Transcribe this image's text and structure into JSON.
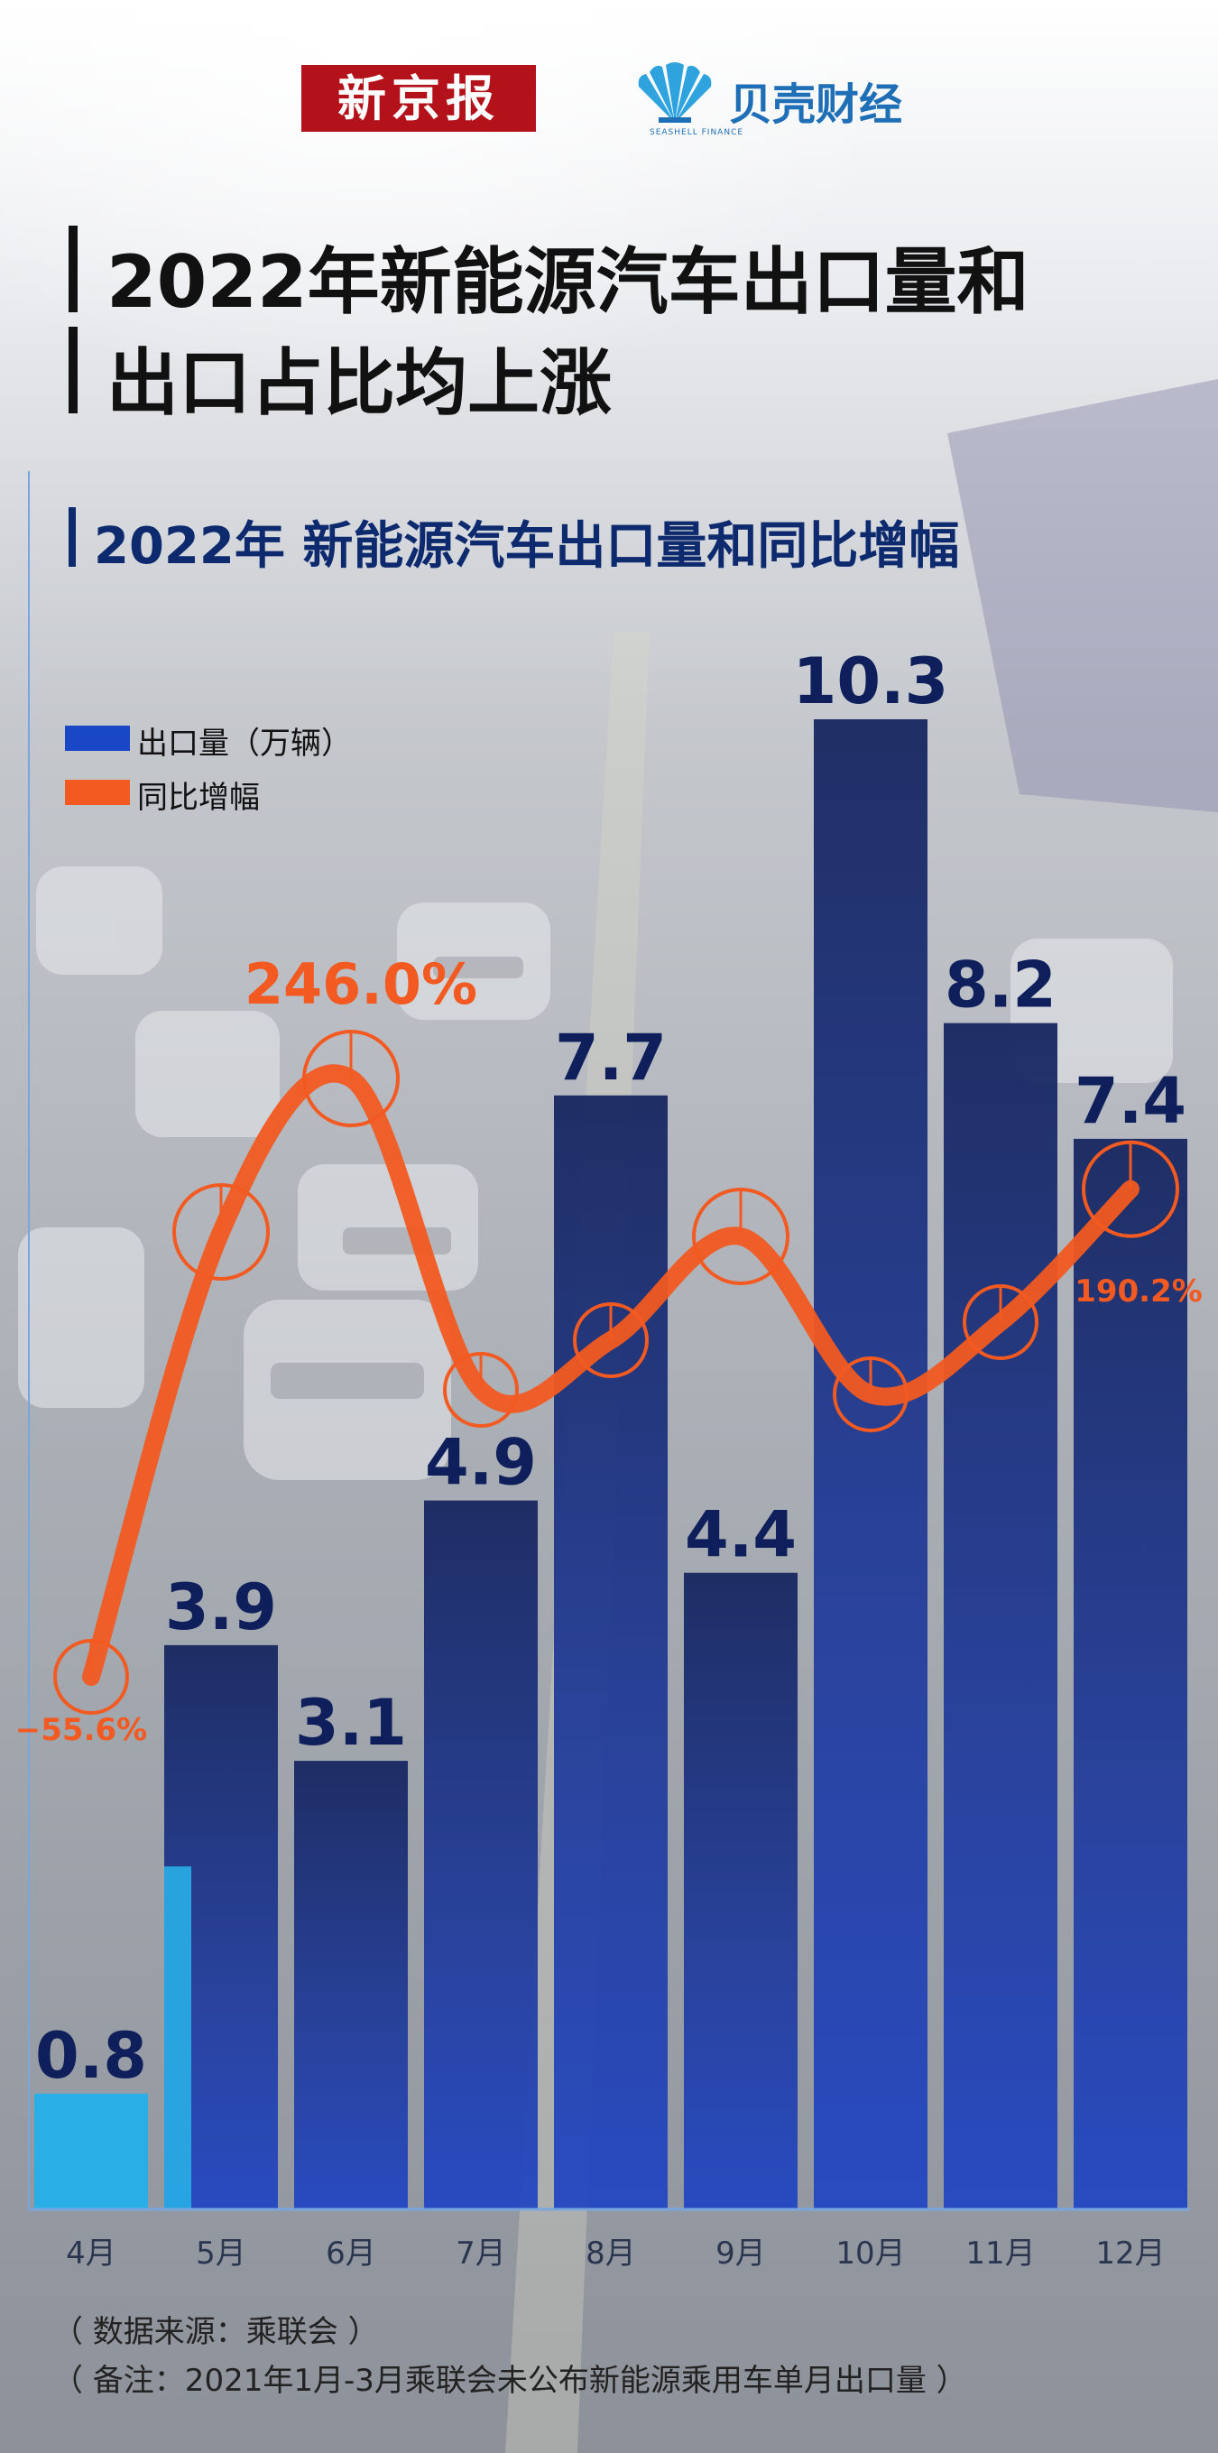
{
  "header": {
    "logo_left": "新京报",
    "logo_right": "贝壳财经",
    "logo_right_sub": "SEASHELL FINANCE",
    "title_line1": "2022年新能源汽车出口量和",
    "title_line2": "出口占比均上涨",
    "subtitle": "2022年 新能源汽车出口量和同比增幅"
  },
  "legend": [
    {
      "label": "出口量（万辆）",
      "color": "#1a47c6"
    },
    {
      "label": "同比增幅",
      "color": "#f25a21"
    }
  ],
  "chart_data": {
    "type": "bar",
    "categories": [
      "4月",
      "5月",
      "6月",
      "7月",
      "8月",
      "9月",
      "10月",
      "11月",
      "12月"
    ],
    "series": [
      {
        "name": "出口量（万辆）",
        "values": [
          0.8,
          3.9,
          3.1,
          4.9,
          7.7,
          4.4,
          10.3,
          8.2,
          7.4
        ]
      },
      {
        "name": "同比增幅",
        "values": [
          -55.6,
          null,
          246.0,
          null,
          null,
          null,
          null,
          null,
          190.2
        ],
        "unit": "%"
      }
    ],
    "value_labels": [
      "0.8",
      "3.9",
      "3.1",
      "4.9",
      "7.7",
      "4.4",
      "10.3",
      "8.2",
      "7.4"
    ],
    "growth_labels": {
      "0": "−55.6%",
      "2": "246.0%",
      "8": "190.2%"
    },
    "colors": {
      "bar_dark": "#1f2f7a",
      "bar_light": "#29aee6",
      "line": "#f25a21",
      "label": "#0e1f5c"
    }
  },
  "notes": [
    "（ 数据来源：乘联会 ）",
    "（ 备注：2021年1月-3月乘联会未公布新能源乘用车单月出口量 ）"
  ]
}
